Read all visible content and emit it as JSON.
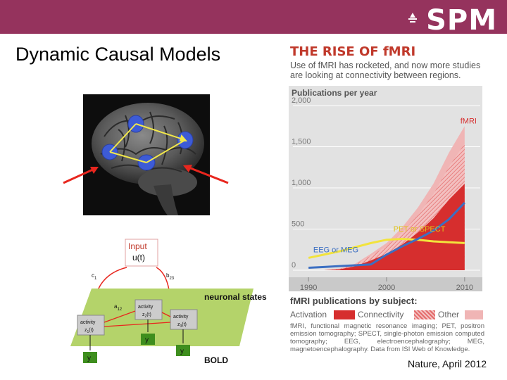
{
  "header": {
    "logo_text": "SPM"
  },
  "slide": {
    "title": "Dynamic Causal Models"
  },
  "figure": {
    "heading": "THE RISE OF fMRI",
    "subheading": "Use of fMRI has rocketed, and now more studies are looking at connectivity between regions."
  },
  "chart_data": {
    "type": "line",
    "title": "Publications per year",
    "x": [
      1990,
      1992,
      1994,
      1996,
      1998,
      2000,
      2002,
      2004,
      2006,
      2008,
      2010
    ],
    "x_ticks": [
      "1990",
      "2000",
      "2010"
    ],
    "y_ticks": [
      "0",
      "500",
      "1,000",
      "1,500",
      "2,000"
    ],
    "ylim": [
      0,
      2000
    ],
    "xlim": [
      1988,
      2012
    ],
    "grid": true,
    "series": [
      {
        "name": "fMRI",
        "color": "#e03b3b",
        "values": [
          0,
          0,
          20,
          80,
          200,
          330,
          520,
          760,
          1050,
          1430,
          1750
        ]
      },
      {
        "name": "PET or SPECT",
        "color": "#f2e33c",
        "values": [
          150,
          190,
          230,
          280,
          330,
          370,
          380,
          370,
          350,
          340,
          330
        ]
      },
      {
        "name": "EEG or MEG",
        "color": "#3c6fc2",
        "values": [
          30,
          40,
          50,
          60,
          70,
          190,
          290,
          380,
          480,
          620,
          820
        ]
      }
    ],
    "annotations": [
      {
        "text": "fMRI",
        "series": "fMRI"
      },
      {
        "text": "PET or SPECT",
        "series": "PET or SPECT"
      },
      {
        "text": "EEG or MEG",
        "series": "EEG or MEG"
      }
    ]
  },
  "legend": {
    "title": "fMRI publications by subject:",
    "items": [
      {
        "label": "Activation",
        "color": "#d62e2e"
      },
      {
        "label": "Connectivity",
        "color": "#e46b6b"
      },
      {
        "label": "Other",
        "color": "#f0b5b5"
      }
    ]
  },
  "footnote": "fMRI, functional magnetic resonance imaging; PET, positron emission tomography; SPECT, single-photon emission computed tomography; EEG, electroencephalography; MEG, magnetoencephalography. Data from ISI Web of Knowledge.",
  "citation": "Nature, April 2012",
  "dcm": {
    "input_label": "Input",
    "input_var": "u(t)",
    "c1": "c",
    "c1_sub": "1",
    "b": "b",
    "b_sub": "23",
    "a": "a",
    "a_sub": "12",
    "neuronal_states": "neuronal states",
    "bold": "BOLD",
    "activity": "activity",
    "z1": "z",
    "z1_sub": "1",
    "z2": "z",
    "z2_sub": "2",
    "z3": "z",
    "z3_sub": "3",
    "z_suffix": "(t)",
    "y": "y"
  }
}
